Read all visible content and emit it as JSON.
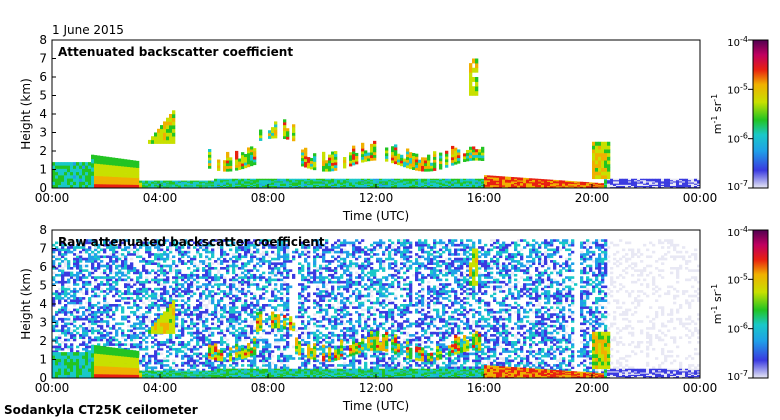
{
  "header": {
    "date": "1 June 2015"
  },
  "footer": {
    "instrument": "Sodankyla CT25K ceilometer"
  },
  "chart_data": [
    {
      "type": "heatmap",
      "title": "Attenuated backscatter coefficient",
      "xlabel": "Time (UTC)",
      "ylabel": "Height (km)",
      "x_ticks": [
        "00:00",
        "04:00",
        "08:00",
        "12:00",
        "16:00",
        "20:00",
        "00:00"
      ],
      "xlim_hours": [
        0,
        24
      ],
      "y_ticks": [
        0,
        1,
        2,
        3,
        4,
        5,
        6,
        7,
        8
      ],
      "ylim": [
        0,
        8
      ],
      "colorbar": {
        "label": "m-1 sr-1",
        "scale": "log",
        "range": [
          1e-07,
          0.0001
        ],
        "tick_labels": [
          "10-4",
          "10-5",
          "10-6",
          "10-7"
        ]
      },
      "features": [
        {
          "desc": "boundary layer",
          "time_range": [
            0,
            24
          ],
          "top_km": [
            1.5,
            0.3
          ]
        },
        {
          "desc": "cloud",
          "time_range": [
            3.6,
            4.6
          ],
          "height_km": [
            2.5,
            4.5
          ]
        },
        {
          "desc": "cloud layer",
          "time_range": [
            6.0,
            16.0
          ],
          "height_km": [
            1.0,
            2.8
          ]
        },
        {
          "desc": "thin cloud",
          "time_range": [
            15.5,
            15.8
          ],
          "height_km": [
            5.0,
            7.0
          ]
        },
        {
          "desc": "low cloud/fog",
          "time_range": [
            16.0,
            20.5
          ],
          "height_km": [
            0.0,
            0.8
          ]
        }
      ]
    },
    {
      "type": "heatmap",
      "title": "Raw attenuated backscatter coefficient",
      "xlabel": "Time (UTC)",
      "ylabel": "Height (km)",
      "x_ticks": [
        "00:00",
        "04:00",
        "08:00",
        "12:00",
        "16:00",
        "20:00",
        "00:00"
      ],
      "xlim_hours": [
        0,
        24
      ],
      "y_ticks": [
        0,
        1,
        2,
        3,
        4,
        5,
        6,
        7,
        8
      ],
      "ylim": [
        0,
        8
      ],
      "colorbar": {
        "label": "m-1 sr-1",
        "scale": "log",
        "range": [
          1e-07,
          0.0001
        ],
        "tick_labels": [
          "10-4",
          "10-5",
          "10-6",
          "10-7"
        ]
      }
    }
  ]
}
